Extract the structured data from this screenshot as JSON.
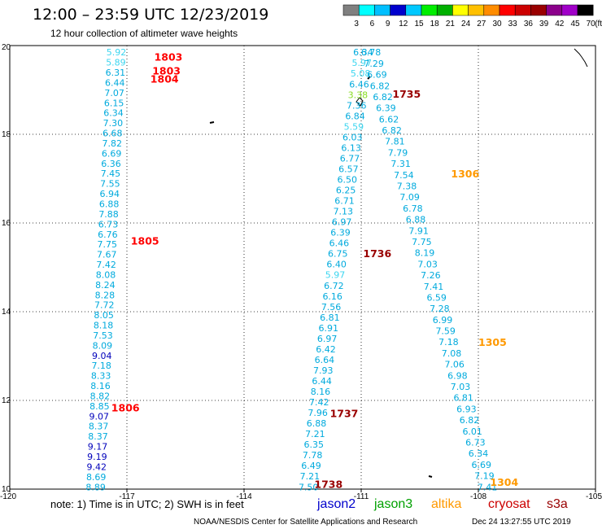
{
  "header": {
    "title": "12:00 – 23:59 UTC 12/23/2019",
    "subtitle": "12 hour collection of altimeter wave heights"
  },
  "legend_scale": {
    "unit": "(ft)",
    "labels": [
      "3",
      "6",
      "9",
      "12",
      "15",
      "18",
      "21",
      "24",
      "27",
      "30",
      "33",
      "36",
      "39",
      "42",
      "45",
      "70"
    ],
    "colors": [
      "#808080",
      "#00ffff",
      "#00bfff",
      "#0000cd",
      "#00c8ff",
      "#00ee00",
      "#00b000",
      "#ffff00",
      "#ffc000",
      "#ff8c00",
      "#ff0000",
      "#cc0000",
      "#990000",
      "#8b008b",
      "#a000c8",
      "#000000"
    ]
  },
  "footer": {
    "note": "note: 1) Time is in UTC; 2) SWH is in feet",
    "credit": "NOAA/NESDIS Center for Satellite Applications and Research",
    "timestamp": "Dec 24 13:27:55 UTC 2019",
    "satellites": [
      {
        "name": "jason2",
        "color": "#0000cc"
      },
      {
        "name": "jason3",
        "color": "#00a000"
      },
      {
        "name": "altika",
        "color": "#ff9900"
      },
      {
        "name": "cryosat",
        "color": "#cc0000"
      },
      {
        "name": "s3a",
        "color": "#990000"
      }
    ]
  },
  "chart_data": {
    "type": "scatter",
    "title": "12 hour collection of altimeter wave heights",
    "xlim": [
      -120,
      -105
    ],
    "ylim": [
      10,
      20
    ],
    "x_ticks": [
      "-120",
      "-117",
      "-114",
      "-111",
      "-108",
      "-105"
    ],
    "y_ticks": [
      "20",
      "18",
      "16",
      "14",
      "12",
      "10"
    ],
    "grid": true,
    "tracks": [
      {
        "x0": -117.27,
        "x1": -117.8,
        "values": [
          "5.92",
          "5.89",
          "6.31",
          "6.44",
          "7.07",
          "6.15",
          "6.34",
          "7.30",
          "6.68",
          "7.82",
          "6.69",
          "6.36",
          "7.45",
          "7.55",
          "6.94",
          "6.88",
          "7.88",
          "6.73",
          "6.76",
          "7.75",
          "7.67",
          "7.42",
          "8.08",
          "8.24",
          "8.28",
          "7.72",
          "8.05",
          "8.18",
          "7.53",
          "8.09",
          "9.04",
          "7.18",
          "8.33",
          "8.16",
          "8.82",
          "8.85",
          "9.07",
          "8.37",
          "8.37",
          "9.17",
          "9.19",
          "9.42",
          "8.69",
          "8.89"
        ],
        "colors": [
          "c1",
          "c1",
          "c2",
          "c2",
          "c2",
          "c2",
          "c2",
          "c2",
          "c2",
          "c2",
          "c2",
          "c2",
          "c2",
          "c2",
          "c2",
          "c2",
          "c2",
          "c2",
          "c2",
          "c2",
          "c2",
          "c2",
          "c2",
          "c2",
          "c2",
          "c2",
          "c2",
          "c2",
          "c2",
          "c2",
          "c3",
          "c2",
          "c2",
          "c2",
          "c2",
          "c2",
          "c3",
          "c2",
          "c2",
          "c3",
          "c3",
          "c3",
          "c2",
          "c2"
        ]
      },
      {
        "x0": -110.95,
        "x1": -112.35,
        "values": [
          "6.34",
          "5.97",
          "5.08",
          "6.46",
          "3.38",
          "7.36",
          "6.84",
          "5.59",
          "6.03",
          "6.13",
          "6.77",
          "6.57",
          "6.50",
          "6.25",
          "6.71",
          "7.13",
          "6.97",
          "6.39",
          "6.46",
          "6.75",
          "6.40",
          "5.97",
          "6.72",
          "6.16",
          "7.56",
          "6.81",
          "6.91",
          "6.97",
          "6.42",
          "6.64",
          "7.93",
          "6.44",
          "8.16",
          "7.42",
          "7.96",
          "6.88",
          "7.21",
          "6.35",
          "7.78",
          "6.49",
          "7.21",
          "7.50"
        ],
        "colors": [
          "c2",
          "c1",
          "c1",
          "c2",
          "c5",
          "c2",
          "c2",
          "c1",
          "c2",
          "c2",
          "c2",
          "c2",
          "c2",
          "c2",
          "c2",
          "c2",
          "c2",
          "c2",
          "c2",
          "c2",
          "c2",
          "c1",
          "c2",
          "c2",
          "c2",
          "c2",
          "c2",
          "c2",
          "c2",
          "c2",
          "c2",
          "c2",
          "c2",
          "c2",
          "c2",
          "c2",
          "c2",
          "c2",
          "c2",
          "c2",
          "c2",
          "c2"
        ]
      },
      {
        "x0": -110.75,
        "x1": -107.77,
        "values": [
          "6.78",
          "7.29",
          "6.69",
          "6.82",
          "6.82",
          "6.39",
          "6.62",
          "6.82",
          "7.81",
          "7.79",
          "7.31",
          "7.54",
          "7.38",
          "7.09",
          "6.78",
          "6.88",
          "7.91",
          "7.75",
          "8.19",
          "7.03",
          "7.26",
          "7.41",
          "6.59",
          "7.28",
          "6.99",
          "7.59",
          "7.18",
          "7.08",
          "7.06",
          "6.98",
          "7.03",
          "6.81",
          "6.93",
          "6.82",
          "6.01",
          "6.73",
          "6.34",
          "6.69",
          "7.19",
          "7.41"
        ],
        "colors": [
          "c2",
          "c2",
          "c2",
          "c2",
          "c2",
          "c2",
          "c2",
          "c2",
          "c2",
          "c2",
          "c2",
          "c2",
          "c2",
          "c2",
          "c2",
          "c2",
          "c2",
          "c2",
          "c2",
          "c2",
          "c2",
          "c2",
          "c2",
          "c2",
          "c2",
          "c2",
          "c2",
          "c2",
          "c2",
          "c2",
          "c2",
          "c2",
          "c2",
          "c2",
          "c2",
          "c2",
          "c2",
          "c2",
          "c2",
          "c2"
        ]
      }
    ],
    "pass_times": [
      {
        "text": "1803",
        "x": -116.3,
        "y": 19.73,
        "color": "#ff0000"
      },
      {
        "text": "1803",
        "x": -116.35,
        "y": 19.42,
        "color": "#ff0000"
      },
      {
        "text": "1804",
        "x": -116.4,
        "y": 19.24,
        "color": "#ff0000"
      },
      {
        "text": "1805",
        "x": -116.9,
        "y": 15.59,
        "color": "#ff0000"
      },
      {
        "text": "1806",
        "x": -117.4,
        "y": 11.83,
        "color": "#ff0000"
      },
      {
        "text": "1735",
        "x": -110.2,
        "y": 18.9,
        "color": "#990000"
      },
      {
        "text": "1736",
        "x": -110.95,
        "y": 15.3,
        "color": "#990000"
      },
      {
        "text": "1737",
        "x": -111.8,
        "y": 11.7,
        "color": "#990000"
      },
      {
        "text": "1738",
        "x": -112.2,
        "y": 10.1,
        "color": "#990000"
      },
      {
        "text": "1306",
        "x": -108.7,
        "y": 17.1,
        "color": "#ff9900"
      },
      {
        "text": "1305",
        "x": -108.0,
        "y": 13.3,
        "color": "#ff9900"
      },
      {
        "text": "1304",
        "x": -107.7,
        "y": 10.15,
        "color": "#ff9900"
      }
    ],
    "palette": {
      "c1": "#3cd6f0",
      "c2": "#00aadd",
      "c3": "#0000bb",
      "c5": "#88dd22"
    }
  }
}
